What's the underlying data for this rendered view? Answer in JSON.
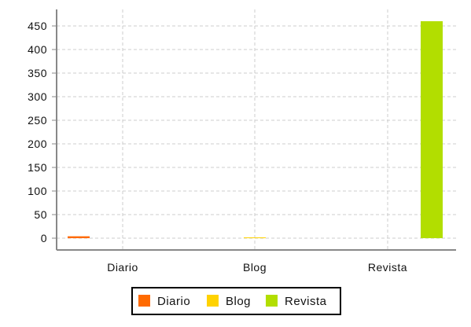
{
  "chart_data": {
    "type": "bar",
    "categories": [
      "Diario",
      "Blog",
      "Revista"
    ],
    "series": [
      {
        "name": "Diario",
        "color": "#ff6a00",
        "values": [
          4,
          0,
          0
        ]
      },
      {
        "name": "Blog",
        "color": "#ffd200",
        "values": [
          0,
          0.5,
          0
        ]
      },
      {
        "name": "Revista",
        "color": "#b2de00",
        "values": [
          0,
          0,
          460
        ]
      }
    ],
    "ylim": [
      -25,
      485
    ],
    "yticks": [
      0,
      50,
      100,
      150,
      200,
      250,
      300,
      350,
      400,
      450
    ],
    "grid": true,
    "legend": "bottom-center"
  }
}
